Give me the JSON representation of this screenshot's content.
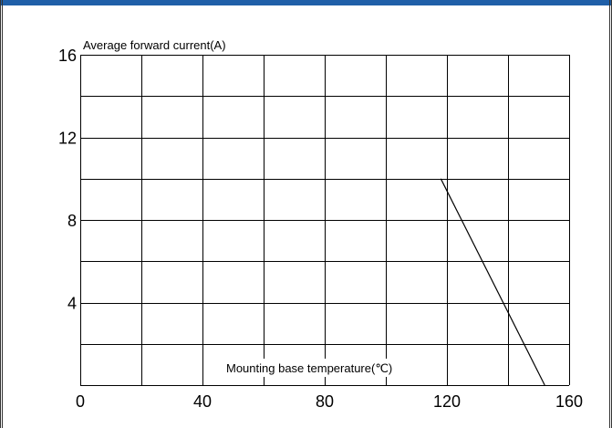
{
  "chart_data": {
    "type": "line",
    "title": "",
    "ylabel": "Average forward current(A)",
    "xlabel": "Mounting base temperature(℃)",
    "xlim": [
      0,
      160
    ],
    "ylim": [
      0,
      16
    ],
    "x_ticks": [
      0,
      40,
      80,
      120,
      160
    ],
    "y_ticks": [
      4,
      8,
      12,
      16
    ],
    "x_grid_step": 20,
    "y_grid_step": 2,
    "grid": true,
    "series": [
      {
        "x": [
          118,
          152
        ],
        "y": [
          10,
          0
        ]
      }
    ]
  },
  "colors": {
    "accent_bar": "#1f5fa8",
    "grid": "#000000",
    "line": "#000000"
  }
}
